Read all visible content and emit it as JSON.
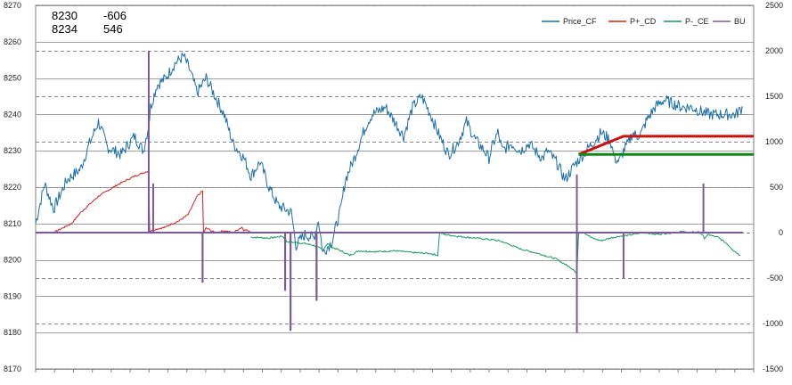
{
  "info_box": {
    "rows": [
      {
        "a": "8230",
        "b": "-606"
      },
      {
        "a": "8234",
        "b": "546"
      }
    ]
  },
  "colors": {
    "price": "#1a6fa8",
    "pcd": "#cc2222",
    "pce": "#1a9a5a",
    "bu": "#7a5a9a",
    "level_red": "#cc1111",
    "level_green": "#118811",
    "grid_solid": "#a0a0a0",
    "grid_dashed": "#888888"
  },
  "chart_data": {
    "type": "line",
    "title": "",
    "grid": true,
    "legend_position": "top-right",
    "left_axis": {
      "min": 8170,
      "max": 8270,
      "ticks": [
        8170,
        8180,
        8190,
        8200,
        8210,
        8220,
        8230,
        8240,
        8250,
        8260,
        8270
      ]
    },
    "right_axis": {
      "min": -1500,
      "max": 2500,
      "ticks": [
        -1500,
        -1000,
        -500,
        0,
        500,
        1000,
        1500,
        2000,
        2500
      ]
    },
    "x_count": 800,
    "series": [
      {
        "name": "Price_CF",
        "axis": "left",
        "x": [
          0,
          10,
          20,
          35,
          50,
          60,
          70,
          80,
          95,
          110,
          120,
          126,
          128,
          135,
          145,
          155,
          165,
          172,
          180,
          190,
          200,
          210,
          220,
          232,
          240,
          250,
          260,
          270,
          285,
          290,
          300,
          310,
          315,
          320,
          330,
          340,
          345,
          355,
          365,
          370,
          375,
          390,
          400,
          410,
          420,
          430,
          440,
          450,
          460,
          470,
          480,
          490,
          500,
          505,
          510,
          515,
          520,
          530,
          540,
          550,
          560,
          565,
          570,
          580,
          590,
          600,
          610,
          620,
          630,
          640,
          645,
          650,
          655,
          660,
          665,
          670,
          675,
          680,
          690,
          700,
          710,
          720,
          730,
          740,
          750,
          760,
          770,
          780,
          788
        ],
        "y": [
          8210,
          8221,
          8214,
          8222,
          8225,
          8232,
          8238,
          8231,
          8229,
          8234,
          8230,
          8237,
          8242,
          8248,
          8250,
          8254,
          8256,
          8252,
          8246,
          8250,
          8245,
          8240,
          8232,
          8228,
          8223,
          8227,
          8220,
          8215,
          8213,
          8204,
          8207,
          8206,
          8211,
          8202,
          8205,
          8214,
          8222,
          8228,
          8235,
          8238,
          8240,
          8242,
          8238,
          8234,
          8242,
          8245,
          8240,
          8234,
          8229,
          8232,
          8238,
          8233,
          8230,
          8228,
          8232,
          8235,
          8230,
          8232,
          8230,
          8232,
          8229,
          8228,
          8230,
          8227,
          8222,
          8226,
          8229,
          8232,
          8235,
          8233,
          8228,
          8227,
          8230,
          8232,
          8235,
          8234,
          8235,
          8238,
          8242,
          8244,
          8243,
          8242,
          8242,
          8241,
          8240,
          8240,
          8240,
          8240,
          8242
        ]
      },
      {
        "name": "P+_CD",
        "axis": "right",
        "x": [
          0,
          20,
          40,
          50,
          70,
          90,
          110,
          126,
          127,
          128,
          135,
          140,
          145,
          150,
          160,
          170,
          175,
          180,
          186,
          187,
          190,
          200,
          210,
          220,
          230,
          232,
          233,
          240
        ],
        "y": [
          0,
          0,
          100,
          220,
          400,
          520,
          620,
          680,
          0,
          20,
          40,
          50,
          60,
          90,
          130,
          200,
          300,
          400,
          460,
          0,
          50,
          0,
          20,
          0,
          60,
          20,
          40,
          0
        ]
      },
      {
        "name": "P-_CE",
        "axis": "right",
        "x": [
          240,
          260,
          275,
          280,
          300,
          310,
          320,
          325,
          330,
          340,
          350,
          360,
          380,
          400,
          420,
          440,
          448,
          450,
          455,
          470,
          490,
          510,
          520,
          540,
          560,
          580,
          590,
          600,
          603,
          605,
          610,
          620,
          630,
          640,
          650,
          660,
          670,
          680,
          690,
          700,
          710,
          720,
          730,
          740,
          745,
          750,
          755,
          760,
          770,
          778,
          785
        ],
        "y": [
          -50,
          -60,
          -40,
          -100,
          -120,
          -140,
          -190,
          -120,
          -160,
          -200,
          -250,
          -200,
          -210,
          -200,
          -220,
          -230,
          -250,
          0,
          -20,
          -40,
          -60,
          -80,
          -100,
          -180,
          -230,
          -290,
          -350,
          -410,
          -460,
          -5,
          10,
          -60,
          -90,
          -60,
          -40,
          -30,
          -10,
          0,
          -20,
          -10,
          0,
          10,
          0,
          10,
          -60,
          -20,
          -40,
          -50,
          -120,
          -200,
          -250
        ]
      },
      {
        "name": "BU",
        "axis": "right",
        "type": "spikes",
        "baseline": 0,
        "x": [
          126,
          131,
          186,
          187,
          278,
          284,
          313,
          603,
          655,
          744
        ],
        "y": [
          2000,
          540,
          -550,
          0,
          -640,
          -1080,
          -750,
          640,
          -500,
          540
        ]
      },
      {
        "name": "level_red",
        "axis": "left",
        "x": [
          605,
          655,
          800
        ],
        "y": [
          8229,
          8234,
          8234
        ]
      },
      {
        "name": "level_green",
        "axis": "left",
        "x": [
          605,
          800
        ],
        "y": [
          8229,
          8229
        ]
      }
    ],
    "bu_extra": [
      {
        "x": 186,
        "y": -550
      },
      {
        "x": 278,
        "y": -640
      },
      {
        "x": 284,
        "y": -1080
      },
      {
        "x": 313,
        "y": -750
      },
      {
        "x": 603,
        "y": -1100
      }
    ],
    "legend": [
      "Price_CF",
      "P+_CD",
      "P-_CE",
      "BU"
    ]
  }
}
